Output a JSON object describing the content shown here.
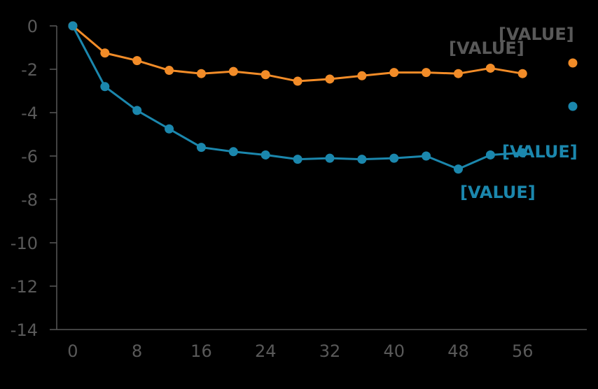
{
  "chart_data": {
    "type": "line",
    "x": [
      0,
      4,
      8,
      12,
      16,
      20,
      24,
      28,
      32,
      36,
      40,
      44,
      48,
      52,
      56
    ],
    "xticks": [
      "0",
      "8",
      "16",
      "24",
      "32",
      "40",
      "48",
      "56"
    ],
    "xtick_values": [
      0,
      8,
      16,
      24,
      32,
      40,
      48,
      56
    ],
    "yticks": [
      "0",
      "-2",
      "-4",
      "-6",
      "-8",
      "-10",
      "-12",
      "-14"
    ],
    "ytick_values": [
      0,
      -2,
      -4,
      -6,
      -8,
      -10,
      -12,
      -14
    ],
    "xlim": [
      -2,
      64
    ],
    "ylim": [
      -14,
      0
    ],
    "grid": false,
    "series": [
      {
        "color": "#F28C28",
        "values": [
          0,
          -1.25,
          -1.6,
          -2.05,
          -2.2,
          -2.1,
          -2.25,
          -2.55,
          -2.45,
          -2.3,
          -2.15,
          -2.15,
          -2.2,
          -1.95,
          -2.2
        ]
      },
      {
        "color": "#1B87AD",
        "values": [
          0,
          -2.8,
          -3.9,
          -4.75,
          -5.6,
          -5.8,
          -5.95,
          -6.15,
          -6.1,
          -6.15,
          -6.1,
          -6.0,
          -6.6,
          -5.95,
          -5.85
        ]
      }
    ],
    "data_labels": {
      "orange_end": "[VALUE]",
      "orange_top": "[VALUE]",
      "blue_end": "[VALUE]",
      "blue_lower": "[VALUE]"
    },
    "label_colors": {
      "gray": "#595959",
      "blue": "#1B87AD"
    },
    "axis_color": "#595959"
  }
}
